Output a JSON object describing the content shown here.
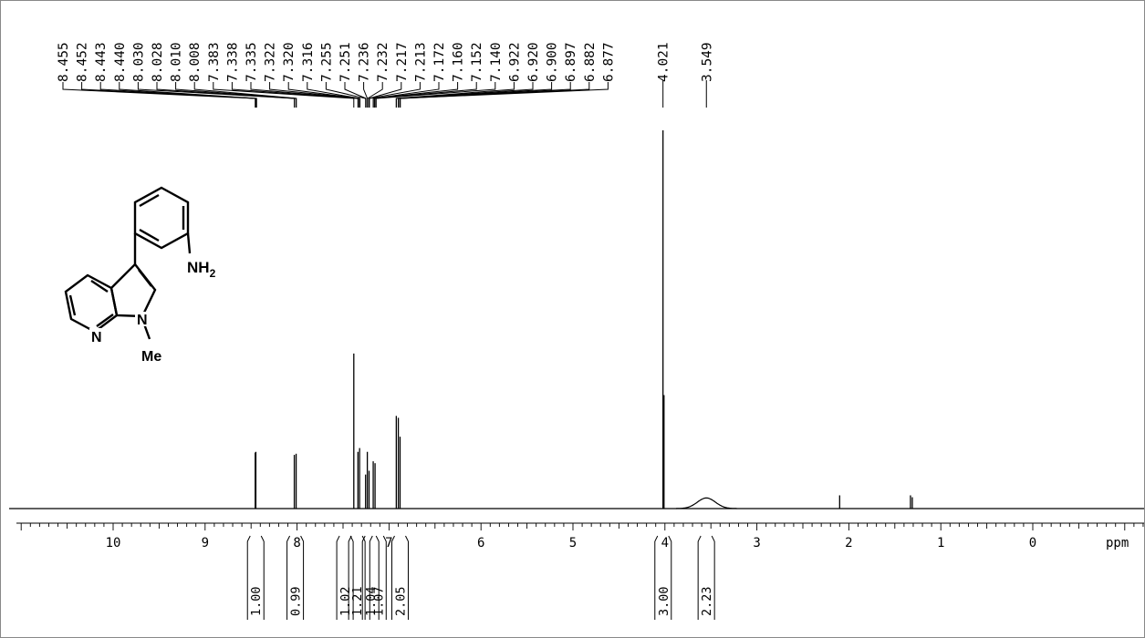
{
  "chart_data": {
    "type": "line",
    "xlabel": "ppm",
    "xlim": [
      11.1,
      -1.2
    ],
    "x_reversed": true,
    "x_ticks": [
      10,
      9,
      8,
      7,
      6,
      5,
      4,
      3,
      2,
      1,
      0
    ],
    "peak_labels": [
      "8.455",
      "8.452",
      "8.443",
      "8.440",
      "8.030",
      "8.028",
      "8.010",
      "8.008",
      "7.383",
      "7.338",
      "7.335",
      "7.322",
      "7.320",
      "7.316",
      "7.255",
      "7.251",
      "7.236",
      "7.232",
      "7.217",
      "7.213",
      "7.172",
      "7.160",
      "7.152",
      "7.140",
      "6.922",
      "6.920",
      "6.900",
      "6.897",
      "6.882",
      "6.877",
      "4.021",
      "3.549"
    ],
    "peaks": [
      {
        "x": 8.455,
        "h": 0.148
      },
      {
        "x": 8.448,
        "h": 0.15
      },
      {
        "x": 8.03,
        "h": 0.142
      },
      {
        "x": 8.01,
        "h": 0.145
      },
      {
        "x": 7.383,
        "h": 0.41
      },
      {
        "x": 7.338,
        "h": 0.15
      },
      {
        "x": 7.32,
        "h": 0.16
      },
      {
        "x": 7.255,
        "h": 0.09
      },
      {
        "x": 7.236,
        "h": 0.15
      },
      {
        "x": 7.217,
        "h": 0.1
      },
      {
        "x": 7.172,
        "h": 0.125
      },
      {
        "x": 7.152,
        "h": 0.12
      },
      {
        "x": 6.921,
        "h": 0.245
      },
      {
        "x": 6.899,
        "h": 0.24
      },
      {
        "x": 6.88,
        "h": 0.19
      },
      {
        "x": 4.021,
        "h": 1.0
      },
      {
        "x": 4.01,
        "h": 0.3
      },
      {
        "x": 2.1,
        "h": 0.035
      },
      {
        "x": 1.33,
        "h": 0.035
      },
      {
        "x": 1.31,
        "h": 0.03
      }
    ],
    "broad_peaks": [
      {
        "x": 3.549,
        "h": 0.028,
        "w": 0.15
      }
    ],
    "integrals": [
      {
        "label": "1.00",
        "x": 8.45
      },
      {
        "label": "0.99",
        "x": 8.02
      },
      {
        "label": "1.02",
        "x": 7.38
      },
      {
        "label": "1.21",
        "x": 7.33
      },
      {
        "label": "1.04",
        "x": 7.24
      },
      {
        "label": "1.07",
        "x": 7.16
      },
      {
        "label": "2.05",
        "x": 6.9
      },
      {
        "label": "3.00",
        "x": 4.02
      },
      {
        "label": "2.23",
        "x": 3.55
      }
    ]
  },
  "structure": {
    "amine_label": "NH",
    "amine_subscript": "2",
    "ring_nitrogen_label": "N",
    "methyl_nitrogen_label": "N",
    "methyl_label": "Me"
  }
}
